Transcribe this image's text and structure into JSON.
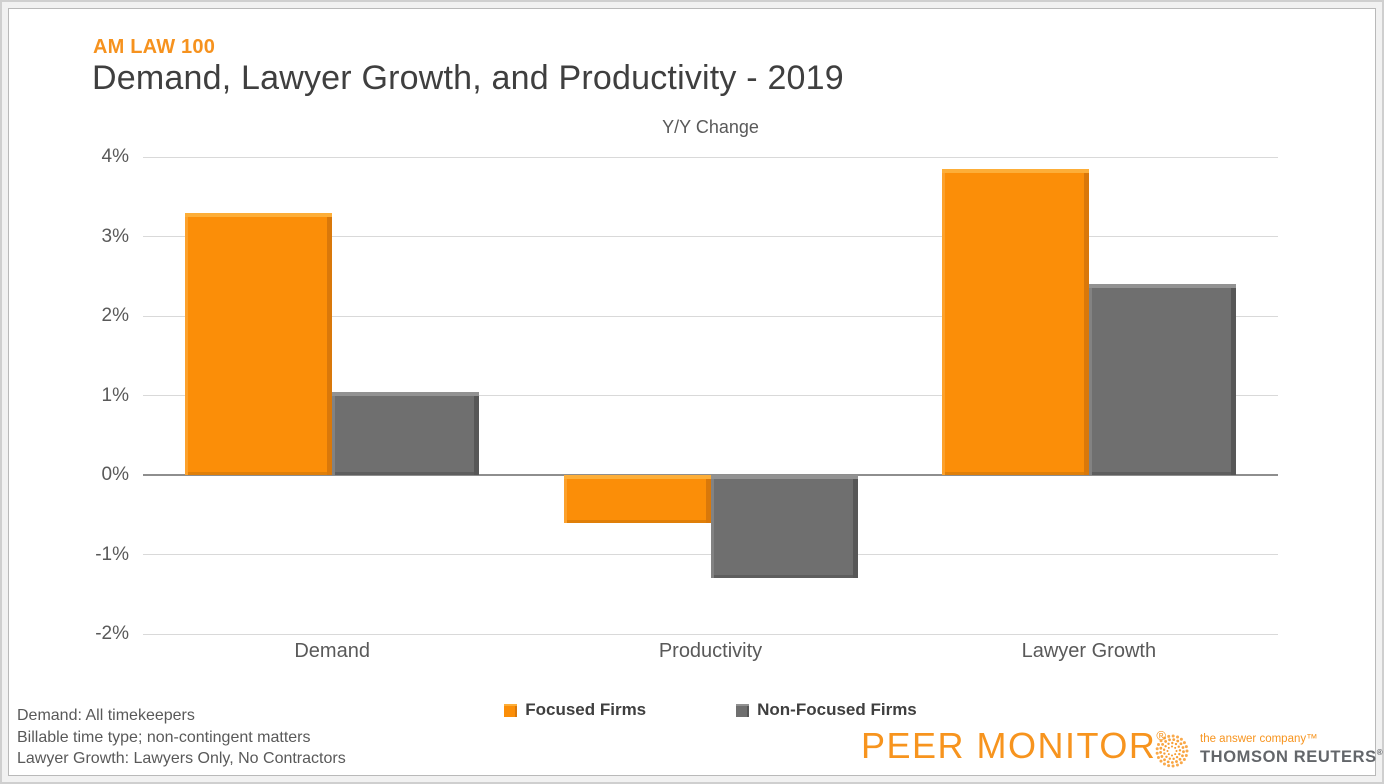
{
  "header": {
    "kicker": "AM LAW 100",
    "title": "Demand, Lawyer Growth, and Productivity - 2019"
  },
  "chart_data": {
    "type": "bar",
    "title": "Y/Y Change",
    "categories": [
      "Demand",
      "Productivity",
      "Lawyer Growth"
    ],
    "series": [
      {
        "name": "Focused Firms",
        "color": "#FB8E08",
        "values": [
          3.3,
          -0.6,
          3.85
        ]
      },
      {
        "name": "Non-Focused Firms",
        "color": "#6F6F6F",
        "values": [
          1.05,
          -1.3,
          2.4
        ]
      }
    ],
    "ylim": [
      -2,
      4
    ],
    "yticks": {
      "values": [
        4,
        3,
        2,
        1,
        0,
        -1,
        -2
      ],
      "labels": [
        "4%",
        "3%",
        "2%",
        "1%",
        "0%",
        "-1%",
        "-2%"
      ]
    },
    "grid": true,
    "legend_position": "bottom"
  },
  "footnotes": [
    "Demand: All timekeepers",
    "Billable time type; non-contingent matters",
    "Lawyer Growth: Lawyers Only, No Contractors"
  ],
  "branding": {
    "peer_monitor": "PEER MONITOR",
    "peer_monitor_reg": "®",
    "tr_tagline": "the answer company™",
    "tr_name": "THOMSON REUTERS",
    "tr_reg": "®"
  },
  "colors": {
    "accent_orange": "#F6921E",
    "bar_orange": "#FB8E08",
    "bar_gray": "#6F6F6F",
    "gridline": "#D9D9D9",
    "zero_line": "#8E8E8E",
    "title_text": "#3F3F3F",
    "axis_text": "#595959"
  }
}
